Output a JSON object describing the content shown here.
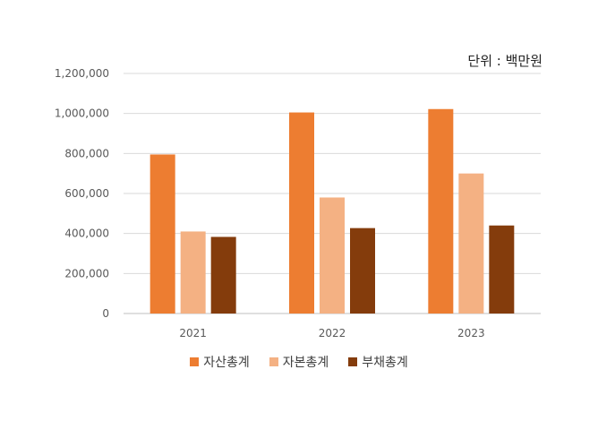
{
  "unit_label": "단위 : 백만원",
  "chart_data": {
    "type": "bar",
    "categories": [
      "2021",
      "2022",
      "2023"
    ],
    "series": [
      {
        "name": "자산총계",
        "color": "#ED7D31",
        "values": [
          795000,
          1005000,
          1022000
        ]
      },
      {
        "name": "자본총계",
        "color": "#F4B183",
        "values": [
          410000,
          580000,
          700000
        ]
      },
      {
        "name": "부채총계",
        "color": "#843C0C",
        "values": [
          383000,
          427000,
          440000
        ]
      }
    ],
    "ylim": [
      0,
      1200000
    ],
    "yticks": [
      "0",
      "200,000",
      "400,000",
      "600,000",
      "800,000",
      "1,000,000",
      "1,200,000"
    ],
    "grid": true,
    "legend_position": "bottom"
  }
}
